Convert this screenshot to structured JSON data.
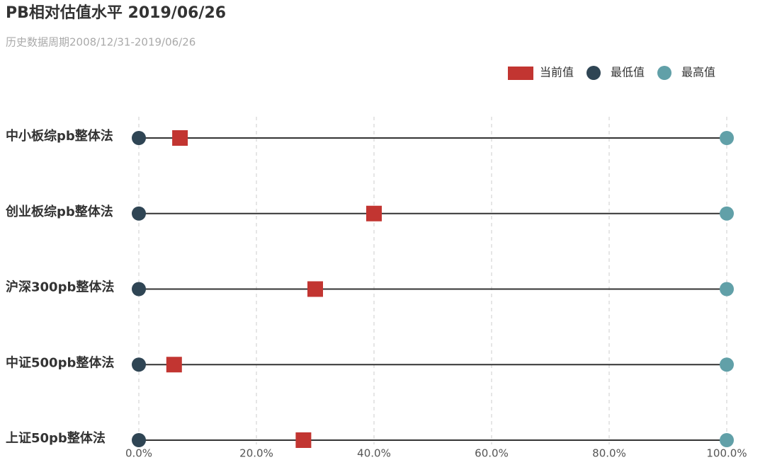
{
  "chart_data": {
    "type": "dumbbell",
    "title": "PB相对估值水平 2019/06/26",
    "subtitle": "历史数据周期2008/12/31-2019/06/26",
    "categories": [
      "中小板综pb整体法",
      "创业板综pb整体法",
      "沪深300pb整体法",
      "中证500pb整体法",
      "上证50pb整体法"
    ],
    "series": [
      {
        "name": "当前值",
        "color": "#c23531",
        "values": [
          7,
          40,
          30,
          6,
          28
        ]
      },
      {
        "name": "最低值",
        "color": "#2f4554",
        "values": [
          0,
          0,
          0,
          0,
          0
        ]
      },
      {
        "name": "最高值",
        "color": "#61a0a8",
        "values": [
          100,
          100,
          100,
          100,
          100
        ]
      }
    ],
    "xlim": [
      0,
      100
    ],
    "xticks": [
      {
        "value": 0,
        "label": "0.0%"
      },
      {
        "value": 20,
        "label": "20.0%"
      },
      {
        "value": 40,
        "label": "40.0%"
      },
      {
        "value": 60,
        "label": "60.0%"
      },
      {
        "value": 80,
        "label": "80.0%"
      },
      {
        "value": 100,
        "label": "100.0%"
      }
    ],
    "grid": true,
    "legend": "top-right"
  }
}
